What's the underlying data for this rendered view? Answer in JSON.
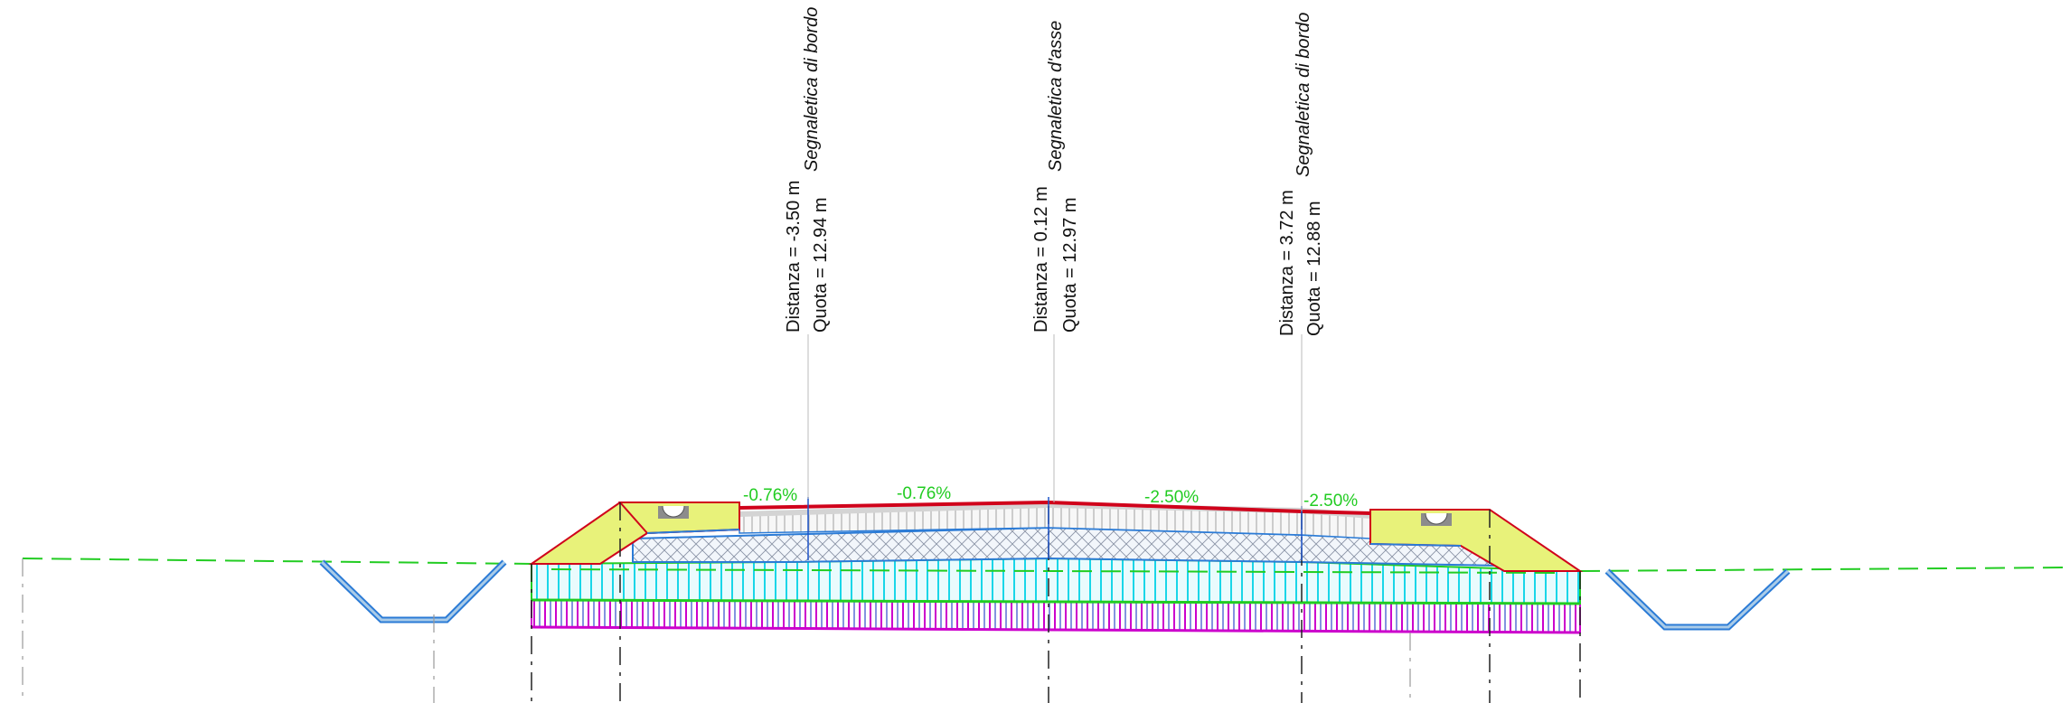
{
  "colors": {
    "ground": "#22cc22",
    "asphalt": "#d0021b",
    "shoulder_fill": "#e8f27a",
    "ballast_grey": "#c6c6c6",
    "subbase": "#d9ecf6",
    "embankment_cyan": "#19d6e8",
    "foundation_magenta": "#cc00cc",
    "layer_blue": "#2b7bd6",
    "ditch_blue": "#5b9fd6"
  },
  "icons": [
    "curb-gutter-icon"
  ],
  "markers": [
    {
      "id": "left",
      "signage": "Segnaletica di bordo",
      "distance": "Distanza = -3.50 m",
      "elevation": "Quota = 12.94 m"
    },
    {
      "id": "center",
      "signage": "Segnaletica d'asse",
      "distance": "Distanza = 0.12 m",
      "elevation": "Quota = 12.97 m"
    },
    {
      "id": "right",
      "signage": "Segnaletica di bordo",
      "distance": "Distanza = 3.72 m",
      "elevation": "Quota = 12.88 m"
    }
  ],
  "slopes": [
    "-0.76%",
    "-0.76%",
    "-2.50%",
    "-2.50%"
  ]
}
